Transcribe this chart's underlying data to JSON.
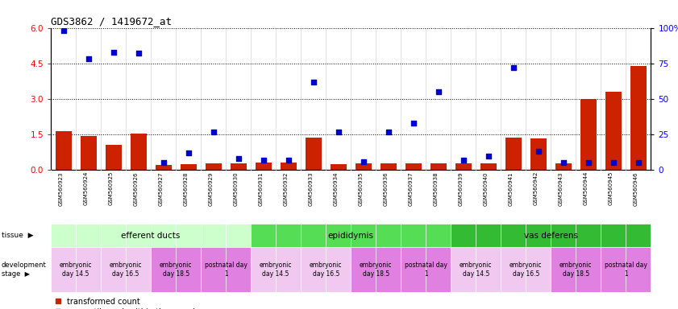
{
  "title": "GDS3862 / 1419672_at",
  "samples": [
    "GSM560923",
    "GSM560924",
    "GSM560925",
    "GSM560926",
    "GSM560927",
    "GSM560928",
    "GSM560929",
    "GSM560930",
    "GSM560931",
    "GSM560932",
    "GSM560933",
    "GSM560934",
    "GSM560935",
    "GSM560936",
    "GSM560937",
    "GSM560938",
    "GSM560939",
    "GSM560940",
    "GSM560941",
    "GSM560942",
    "GSM560943",
    "GSM560944",
    "GSM560945",
    "GSM560946"
  ],
  "transformed_count": [
    1.65,
    1.42,
    1.05,
    1.55,
    0.22,
    0.25,
    0.28,
    0.28,
    0.3,
    0.32,
    1.35,
    0.25,
    0.28,
    0.27,
    0.28,
    0.28,
    0.27,
    0.28,
    1.38,
    1.32,
    0.27,
    3.0,
    3.3,
    4.4
  ],
  "percentile_rank": [
    98,
    78,
    83,
    82,
    5,
    12,
    27,
    8,
    7,
    7,
    62,
    27,
    6,
    27,
    33,
    55,
    7,
    10,
    72,
    13,
    5,
    5,
    5,
    5
  ],
  "tissues": [
    {
      "label": "efferent ducts",
      "start": 0,
      "end": 8,
      "color": "#ccffcc"
    },
    {
      "label": "epididymis",
      "start": 8,
      "end": 16,
      "color": "#44dd44"
    },
    {
      "label": "vas deferens",
      "start": 16,
      "end": 24,
      "color": "#22bb44"
    }
  ],
  "dev_stage_groups": [
    {
      "label": "embryonic\nday 14.5",
      "start": 0,
      "end": 2,
      "color": "#f0c8f0"
    },
    {
      "label": "embryonic\nday 16.5",
      "start": 2,
      "end": 4,
      "color": "#f0c8f0"
    },
    {
      "label": "embryonic\nday 18.5",
      "start": 4,
      "end": 6,
      "color": "#e080e0"
    },
    {
      "label": "postnatal day\n1",
      "start": 6,
      "end": 8,
      "color": "#e080e0"
    },
    {
      "label": "embryonic\nday 14.5",
      "start": 8,
      "end": 10,
      "color": "#f0c8f0"
    },
    {
      "label": "embryonic\nday 16.5",
      "start": 10,
      "end": 12,
      "color": "#f0c8f0"
    },
    {
      "label": "embryonic\nday 18.5",
      "start": 12,
      "end": 14,
      "color": "#e080e0"
    },
    {
      "label": "postnatal day\n1",
      "start": 14,
      "end": 16,
      "color": "#e080e0"
    },
    {
      "label": "embryonic\nday 14.5",
      "start": 16,
      "end": 18,
      "color": "#f0c8f0"
    },
    {
      "label": "embryonic\nday 16.5",
      "start": 18,
      "end": 20,
      "color": "#f0c8f0"
    },
    {
      "label": "embryonic\nday 18.5",
      "start": 20,
      "end": 22,
      "color": "#e080e0"
    },
    {
      "label": "postnatal day\n1",
      "start": 22,
      "end": 24,
      "color": "#e080e0"
    }
  ],
  "ylim_left": [
    0,
    6
  ],
  "ylim_right": [
    0,
    100
  ],
  "yticks_left": [
    0,
    1.5,
    3.0,
    4.5,
    6.0
  ],
  "yticks_right": [
    0,
    25,
    50,
    75,
    100
  ],
  "bar_color": "#cc2200",
  "scatter_color": "#0000cc",
  "background_color": "#ffffff",
  "plot_bg_color": "#ffffff"
}
